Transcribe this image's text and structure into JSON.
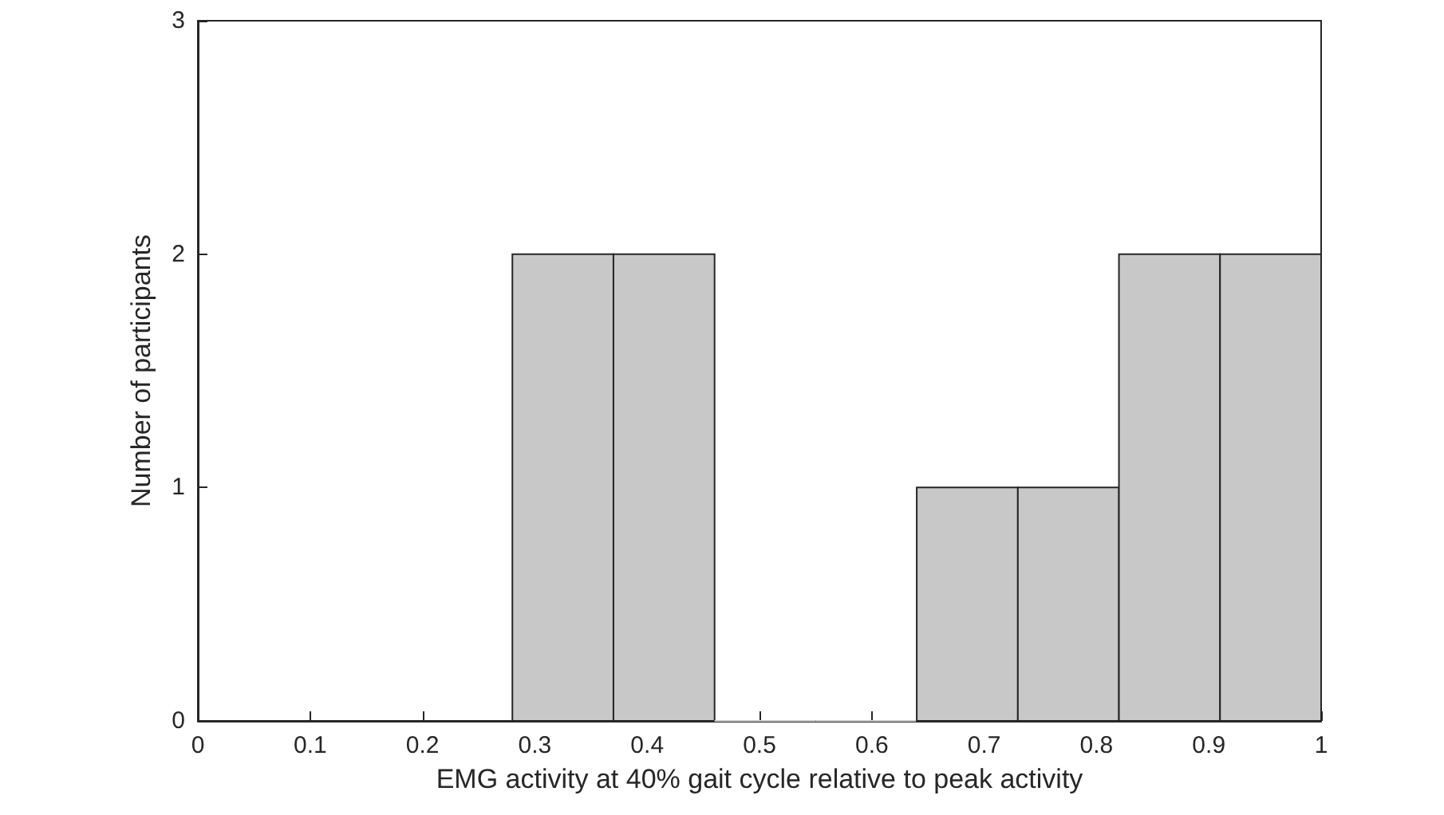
{
  "chart_data": {
    "type": "histogram",
    "xlabel": "EMG activity at 40% gait cycle relative to peak activity",
    "ylabel": "Number of participants",
    "bins": [
      0.28,
      0.37,
      0.46,
      0.55,
      0.64,
      0.73,
      0.82,
      0.91,
      1.0
    ],
    "values": [
      2,
      2,
      0,
      0,
      1,
      1,
      2,
      2
    ],
    "color": "#c8c8c8",
    "xlim": [
      0,
      1
    ],
    "xticks": [
      0,
      0.1,
      0.2,
      0.3,
      0.4,
      0.5,
      0.6,
      0.7,
      0.8,
      0.9,
      1
    ],
    "ylim": [
      0,
      3
    ],
    "yticks": [
      0,
      1,
      2,
      3
    ],
    "grid": false
  }
}
